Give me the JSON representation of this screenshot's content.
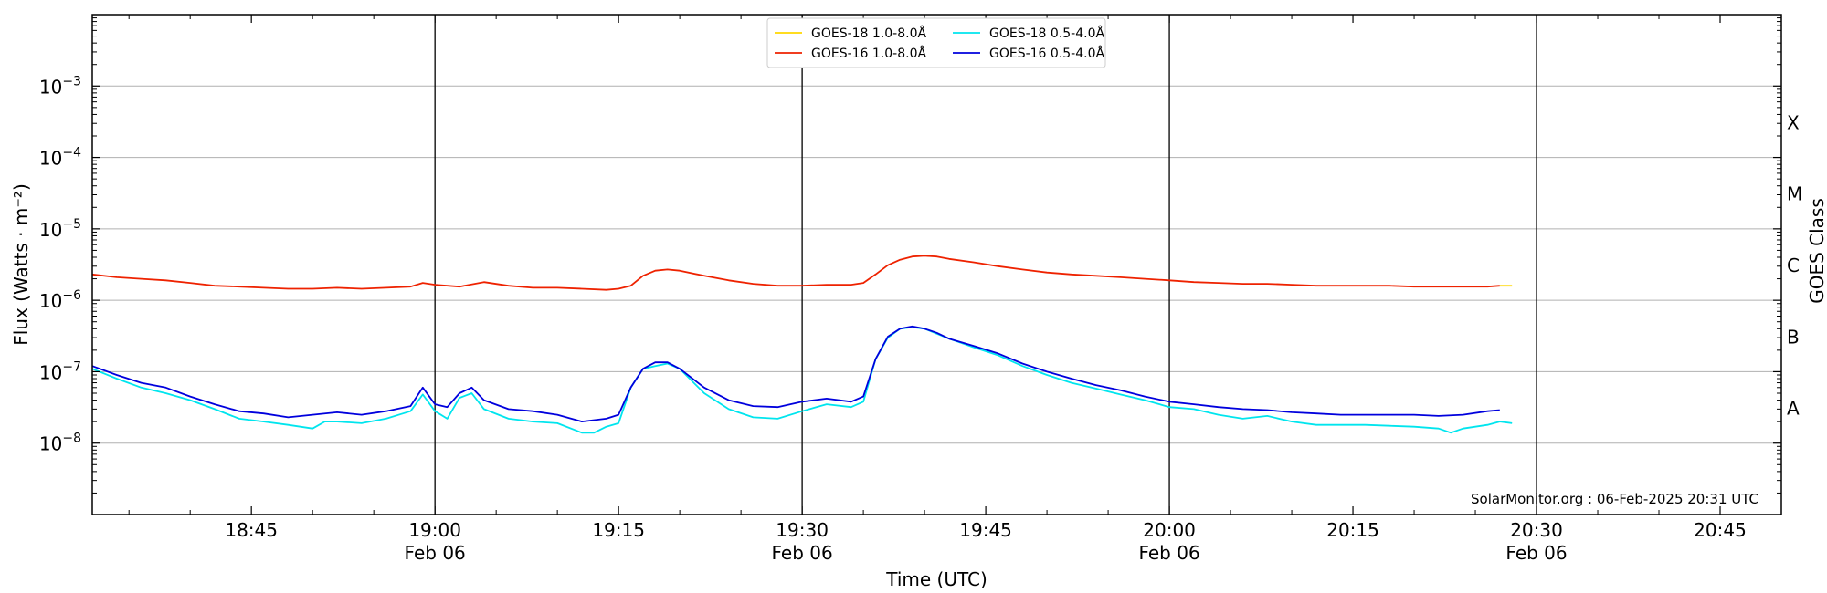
{
  "chart_data": {
    "type": "line",
    "title": "",
    "xlabel": "Time (UTC)",
    "ylabel": "Flux (Watts · m⁻²)",
    "y2label": "GOES Class",
    "yscale": "log",
    "ylim": [
      1e-09,
      0.01
    ],
    "xlim": [
      "18:32",
      "20:50"
    ],
    "y_ticks": [
      {
        "value": 1e-08,
        "base": "10",
        "exp": "−8"
      },
      {
        "value": 1e-07,
        "base": "10",
        "exp": "−7"
      },
      {
        "value": 1e-06,
        "base": "10",
        "exp": "−6"
      },
      {
        "value": 1e-05,
        "base": "10",
        "exp": "−5"
      },
      {
        "value": 0.0001,
        "base": "10",
        "exp": "−4"
      },
      {
        "value": 0.001,
        "base": "10",
        "exp": "−3"
      }
    ],
    "x_ticks": [
      {
        "time": "18:45",
        "label": "18:45",
        "sublabel": ""
      },
      {
        "time": "19:00",
        "label": "19:00",
        "sublabel": "Feb 06"
      },
      {
        "time": "19:15",
        "label": "19:15",
        "sublabel": ""
      },
      {
        "time": "19:30",
        "label": "19:30",
        "sublabel": "Feb 06"
      },
      {
        "time": "19:45",
        "label": "19:45",
        "sublabel": ""
      },
      {
        "time": "20:00",
        "label": "20:00",
        "sublabel": "Feb 06"
      },
      {
        "time": "20:15",
        "label": "20:15",
        "sublabel": ""
      },
      {
        "time": "20:30",
        "label": "20:30",
        "sublabel": "Feb 06"
      },
      {
        "time": "20:45",
        "label": "20:45",
        "sublabel": ""
      }
    ],
    "vertical_lines": [
      "19:00",
      "19:30",
      "20:00",
      "20:30"
    ],
    "goes_classes": [
      {
        "label": "A",
        "level": 1e-08
      },
      {
        "label": "B",
        "level": 1e-07
      },
      {
        "label": "C",
        "level": 1e-06
      },
      {
        "label": "M",
        "level": 1e-05
      },
      {
        "label": "X",
        "level": 0.0001
      }
    ],
    "grid": true,
    "legend_position": "top-center",
    "series": [
      {
        "name": "GOES-18 1.0-8.0Å",
        "color": "#ffd700",
        "x": [
          "20:27",
          "20:28"
        ],
        "y": [
          1.6e-06,
          1.6e-06
        ]
      },
      {
        "name": "GOES-16 1.0-8.0Å",
        "color": "#ee2200",
        "x": [
          "18:32",
          "18:34",
          "18:36",
          "18:38",
          "18:40",
          "18:42",
          "18:44",
          "18:46",
          "18:48",
          "18:50",
          "18:52",
          "18:54",
          "18:56",
          "18:58",
          "18:59",
          "19:00",
          "19:02",
          "19:04",
          "19:06",
          "19:08",
          "19:10",
          "19:12",
          "19:14",
          "19:15",
          "19:16",
          "19:17",
          "19:18",
          "19:19",
          "19:20",
          "19:22",
          "19:24",
          "19:26",
          "19:28",
          "19:30",
          "19:32",
          "19:34",
          "19:35",
          "19:36",
          "19:37",
          "19:38",
          "19:39",
          "19:40",
          "19:41",
          "19:42",
          "19:44",
          "19:46",
          "19:48",
          "19:50",
          "19:52",
          "19:54",
          "19:56",
          "19:58",
          "20:00",
          "20:02",
          "20:04",
          "20:06",
          "20:08",
          "20:10",
          "20:12",
          "20:14",
          "20:16",
          "20:18",
          "20:20",
          "20:22",
          "20:24",
          "20:26",
          "20:27"
        ],
        "y": [
          2.3e-06,
          2.1e-06,
          2e-06,
          1.9e-06,
          1.75e-06,
          1.6e-06,
          1.55e-06,
          1.5e-06,
          1.45e-06,
          1.45e-06,
          1.5e-06,
          1.45e-06,
          1.5e-06,
          1.55e-06,
          1.75e-06,
          1.65e-06,
          1.55e-06,
          1.8e-06,
          1.6e-06,
          1.5e-06,
          1.5e-06,
          1.45e-06,
          1.4e-06,
          1.45e-06,
          1.6e-06,
          2.2e-06,
          2.6e-06,
          2.7e-06,
          2.6e-06,
          2.2e-06,
          1.9e-06,
          1.7e-06,
          1.6e-06,
          1.6e-06,
          1.65e-06,
          1.65e-06,
          1.75e-06,
          2.3e-06,
          3.1e-06,
          3.7e-06,
          4.1e-06,
          4.2e-06,
          4.1e-06,
          3.8e-06,
          3.4e-06,
          3e-06,
          2.7e-06,
          2.45e-06,
          2.3e-06,
          2.2e-06,
          2.1e-06,
          2e-06,
          1.9e-06,
          1.8e-06,
          1.75e-06,
          1.7e-06,
          1.7e-06,
          1.65e-06,
          1.6e-06,
          1.6e-06,
          1.6e-06,
          1.6e-06,
          1.55e-06,
          1.55e-06,
          1.55e-06,
          1.55e-06,
          1.6e-06
        ]
      },
      {
        "name": "GOES-18 0.5-4.0Å",
        "color": "#00e5ee",
        "x": [
          "18:32",
          "18:34",
          "18:36",
          "18:38",
          "18:40",
          "18:42",
          "18:44",
          "18:46",
          "18:48",
          "18:50",
          "18:51",
          "18:52",
          "18:54",
          "18:56",
          "18:58",
          "18:59",
          "19:00",
          "19:01",
          "19:02",
          "19:03",
          "19:04",
          "19:06",
          "19:08",
          "19:10",
          "19:12",
          "19:13",
          "19:14",
          "19:15",
          "19:16",
          "19:17",
          "19:18",
          "19:19",
          "19:20",
          "19:22",
          "19:24",
          "19:26",
          "19:28",
          "19:30",
          "19:32",
          "19:34",
          "19:35",
          "19:36",
          "19:37",
          "19:38",
          "19:39",
          "19:40",
          "19:41",
          "19:42",
          "19:44",
          "19:46",
          "19:48",
          "19:50",
          "19:52",
          "19:54",
          "19:56",
          "19:58",
          "20:00",
          "20:02",
          "20:04",
          "20:06",
          "20:08",
          "20:10",
          "20:12",
          "20:14",
          "20:16",
          "20:18",
          "20:20",
          "20:22",
          "20:23",
          "20:24",
          "20:26",
          "20:27",
          "20:28"
        ],
        "y": [
          1.1e-07,
          8e-08,
          6e-08,
          5e-08,
          4e-08,
          3e-08,
          2.2e-08,
          2e-08,
          1.8e-08,
          1.6e-08,
          2e-08,
          2e-08,
          1.9e-08,
          2.2e-08,
          2.8e-08,
          4.8e-08,
          2.8e-08,
          2.2e-08,
          4.3e-08,
          5e-08,
          3e-08,
          2.2e-08,
          2e-08,
          1.9e-08,
          1.4e-08,
          1.4e-08,
          1.7e-08,
          1.9e-08,
          6e-08,
          1.1e-07,
          1.2e-07,
          1.3e-07,
          1.1e-07,
          5e-08,
          3e-08,
          2.3e-08,
          2.2e-08,
          2.8e-08,
          3.5e-08,
          3.2e-08,
          3.8e-08,
          1.5e-07,
          3e-07,
          4e-07,
          4.2e-07,
          4e-07,
          3.4e-07,
          2.9e-07,
          2.2e-07,
          1.7e-07,
          1.2e-07,
          9e-08,
          7e-08,
          5.8e-08,
          4.8e-08,
          4e-08,
          3.2e-08,
          3e-08,
          2.5e-08,
          2.2e-08,
          2.4e-08,
          2e-08,
          1.8e-08,
          1.8e-08,
          1.8e-08,
          1.75e-08,
          1.7e-08,
          1.6e-08,
          1.4e-08,
          1.6e-08,
          1.8e-08,
          2e-08,
          1.9e-08
        ]
      },
      {
        "name": "GOES-16 0.5-4.0Å",
        "color": "#0000dd",
        "x": [
          "18:32",
          "18:34",
          "18:36",
          "18:38",
          "18:40",
          "18:42",
          "18:44",
          "18:46",
          "18:48",
          "18:50",
          "18:52",
          "18:54",
          "18:56",
          "18:58",
          "18:59",
          "19:00",
          "19:01",
          "19:02",
          "19:03",
          "19:04",
          "19:06",
          "19:08",
          "19:10",
          "19:12",
          "19:13",
          "19:14",
          "19:15",
          "19:16",
          "19:17",
          "19:18",
          "19:19",
          "19:20",
          "19:22",
          "19:24",
          "19:26",
          "19:28",
          "19:30",
          "19:32",
          "19:34",
          "19:35",
          "19:36",
          "19:37",
          "19:38",
          "19:39",
          "19:40",
          "19:41",
          "19:42",
          "19:44",
          "19:46",
          "19:48",
          "19:50",
          "19:52",
          "19:54",
          "19:56",
          "19:58",
          "20:00",
          "20:02",
          "20:04",
          "20:06",
          "20:08",
          "20:10",
          "20:12",
          "20:14",
          "20:16",
          "20:18",
          "20:20",
          "20:22",
          "20:24",
          "20:26",
          "20:27"
        ],
        "y": [
          1.2e-07,
          9e-08,
          7e-08,
          6e-08,
          4.5e-08,
          3.5e-08,
          2.8e-08,
          2.6e-08,
          2.3e-08,
          2.5e-08,
          2.7e-08,
          2.5e-08,
          2.8e-08,
          3.3e-08,
          6e-08,
          3.5e-08,
          3.2e-08,
          5e-08,
          6e-08,
          4e-08,
          3e-08,
          2.8e-08,
          2.5e-08,
          2e-08,
          2.1e-08,
          2.2e-08,
          2.5e-08,
          6e-08,
          1.1e-07,
          1.35e-07,
          1.35e-07,
          1.1e-07,
          6e-08,
          4e-08,
          3.3e-08,
          3.2e-08,
          3.8e-08,
          4.2e-08,
          3.8e-08,
          4.5e-08,
          1.5e-07,
          3.1e-07,
          4e-07,
          4.3e-07,
          4e-07,
          3.5e-07,
          2.9e-07,
          2.3e-07,
          1.8e-07,
          1.3e-07,
          1e-07,
          8e-08,
          6.5e-08,
          5.5e-08,
          4.5e-08,
          3.8e-08,
          3.5e-08,
          3.2e-08,
          3e-08,
          2.9e-08,
          2.7e-08,
          2.6e-08,
          2.5e-08,
          2.5e-08,
          2.5e-08,
          2.5e-08,
          2.4e-08,
          2.5e-08,
          2.8e-08,
          2.9e-08
        ]
      }
    ]
  },
  "credit": "SolarMonitor.org : 06-Feb-2025 20:31 UTC"
}
